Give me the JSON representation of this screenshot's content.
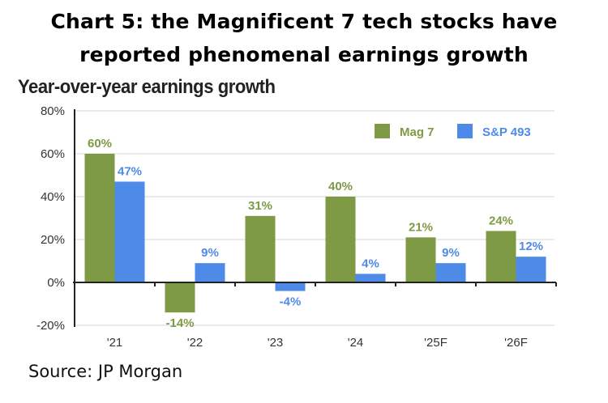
{
  "header": {
    "title_line1": "Chart 5: the Magnificent 7 tech stocks have",
    "title_line2": "reported phenomenal earnings growth"
  },
  "footer": {
    "source": "Source: JP Morgan"
  },
  "chart_data": {
    "type": "bar",
    "title": "Year-over-year earnings growth",
    "xlabel": "",
    "ylabel": "",
    "categories": [
      "'21",
      "'22",
      "'23",
      "'24",
      "'25F",
      "'26F"
    ],
    "series": [
      {
        "name": "Mag 7",
        "color": "#7f9a45",
        "values": [
          60,
          -14,
          31,
          40,
          21,
          24
        ],
        "labels": [
          "60%",
          "-14%",
          "31%",
          "40%",
          "21%",
          "24%"
        ]
      },
      {
        "name": "S&P 493",
        "color": "#4e8be8",
        "values": [
          47,
          9,
          -4,
          4,
          9,
          12
        ],
        "labels": [
          "47%",
          "9%",
          "-4%",
          "4%",
          "9%",
          "12%"
        ]
      }
    ],
    "ylim": [
      -20,
      80
    ],
    "yticks": [
      -20,
      0,
      20,
      40,
      60,
      80
    ],
    "ytick_labels": [
      "-20%",
      "0%",
      "20%",
      "40%",
      "60%",
      "80%"
    ],
    "grid": true,
    "legend_position": "top-right"
  }
}
